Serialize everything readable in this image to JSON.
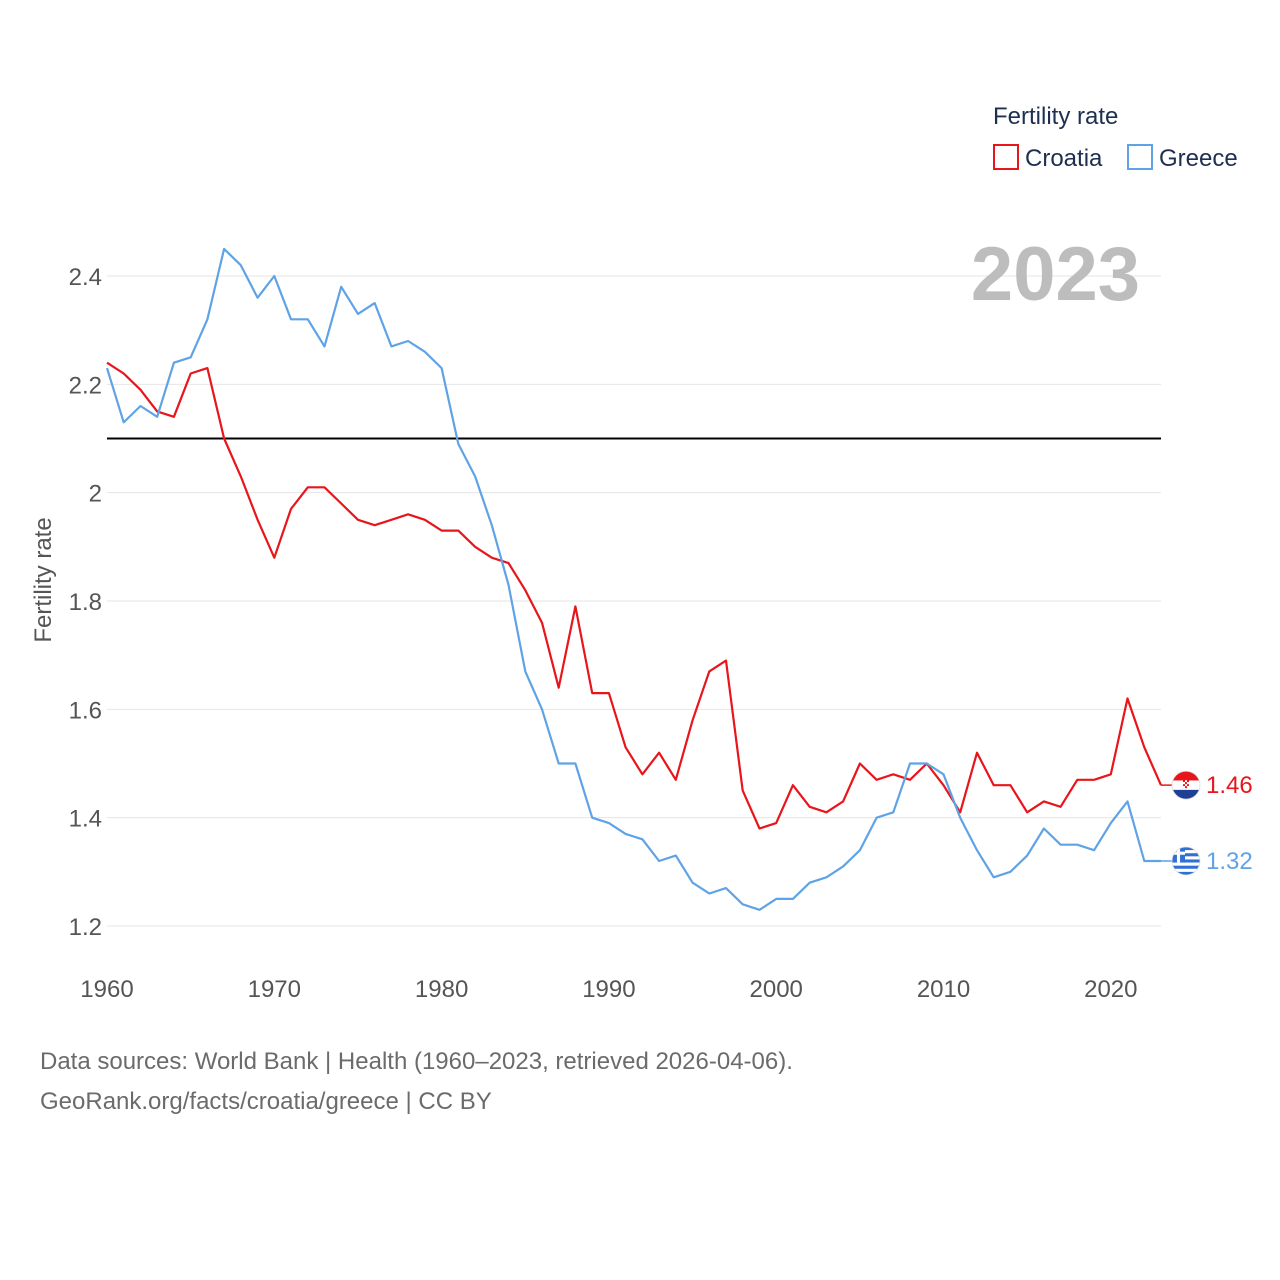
{
  "legend": {
    "title": "Fertility rate",
    "items": [
      {
        "label": "Croatia",
        "color": "#e8151b"
      },
      {
        "label": "Greece",
        "color": "#5fa3e6"
      }
    ]
  },
  "year_label": "2023",
  "source_line1": "Data sources: World Bank | Health (1960–2023, retrieved 2026-04-06).",
  "source_line2": "GeoRank.org/facts/croatia/greece | CC BY",
  "chart_data": {
    "type": "line",
    "title": "Fertility rate",
    "xlabel": "",
    "ylabel": "Fertility rate",
    "xlim": [
      1960,
      2023
    ],
    "ylim": [
      1.15,
      2.5
    ],
    "xticks": [
      1960,
      1970,
      1980,
      1990,
      2000,
      2010,
      2020
    ],
    "yticks": [
      1.2,
      1.4,
      1.6,
      1.8,
      2.0,
      2.2,
      2.4
    ],
    "ytick_labels": [
      "1.2",
      "1.4",
      "1.6",
      "1.8",
      "2",
      "2.2",
      "2.4"
    ],
    "reference_line": 2.1,
    "grid": true,
    "legend_position": "top-right",
    "x": [
      1960,
      1961,
      1962,
      1963,
      1964,
      1965,
      1966,
      1967,
      1968,
      1969,
      1970,
      1971,
      1972,
      1973,
      1974,
      1975,
      1976,
      1977,
      1978,
      1979,
      1980,
      1981,
      1982,
      1983,
      1984,
      1985,
      1986,
      1987,
      1988,
      1989,
      1990,
      1991,
      1992,
      1993,
      1994,
      1995,
      1996,
      1997,
      1998,
      1999,
      2000,
      2001,
      2002,
      2003,
      2004,
      2005,
      2006,
      2007,
      2008,
      2009,
      2010,
      2011,
      2012,
      2013,
      2014,
      2015,
      2016,
      2017,
      2018,
      2019,
      2020,
      2021,
      2022,
      2023
    ],
    "series": [
      {
        "name": "Croatia",
        "color": "#e8151b",
        "end_label": "1.46",
        "values": [
          2.24,
          2.22,
          2.19,
          2.15,
          2.14,
          2.22,
          2.23,
          2.1,
          2.03,
          1.95,
          1.88,
          1.97,
          2.01,
          2.01,
          1.98,
          1.95,
          1.94,
          1.95,
          1.96,
          1.95,
          1.93,
          1.93,
          1.9,
          1.88,
          1.87,
          1.82,
          1.76,
          1.64,
          1.79,
          1.63,
          1.63,
          1.53,
          1.48,
          1.52,
          1.47,
          1.58,
          1.67,
          1.69,
          1.45,
          1.38,
          1.39,
          1.46,
          1.42,
          1.41,
          1.43,
          1.5,
          1.47,
          1.48,
          1.47,
          1.5,
          1.46,
          1.41,
          1.52,
          1.46,
          1.46,
          1.41,
          1.43,
          1.42,
          1.47,
          1.47,
          1.48,
          1.62,
          1.53,
          1.46
        ]
      },
      {
        "name": "Greece",
        "color": "#5fa3e6",
        "end_label": "1.32",
        "values": [
          2.23,
          2.13,
          2.16,
          2.14,
          2.24,
          2.25,
          2.32,
          2.45,
          2.42,
          2.36,
          2.4,
          2.32,
          2.32,
          2.27,
          2.38,
          2.33,
          2.35,
          2.27,
          2.28,
          2.26,
          2.23,
          2.09,
          2.03,
          1.94,
          1.83,
          1.67,
          1.6,
          1.5,
          1.5,
          1.4,
          1.39,
          1.37,
          1.36,
          1.32,
          1.33,
          1.28,
          1.26,
          1.27,
          1.24,
          1.23,
          1.25,
          1.25,
          1.28,
          1.29,
          1.31,
          1.34,
          1.4,
          1.41,
          1.5,
          1.5,
          1.48,
          1.4,
          1.34,
          1.29,
          1.3,
          1.33,
          1.38,
          1.35,
          1.35,
          1.34,
          1.39,
          1.43,
          1.32,
          1.32
        ]
      }
    ]
  }
}
